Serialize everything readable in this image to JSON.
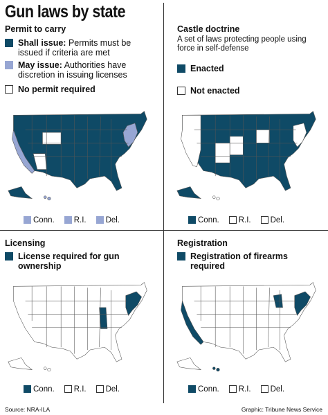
{
  "title": "Gun laws by state",
  "colors": {
    "dark": "#0f4a66",
    "light": "#97a6d3",
    "none": "#ffffff",
    "outline": "#555555"
  },
  "panels": {
    "permit": {
      "title": "Permit to carry",
      "legend": [
        {
          "term": "Shall issue:",
          "text": " Permits must be issued if criteria are met",
          "swatch": "dark"
        },
        {
          "term": "May issue:",
          "text": " Authorities have discretion in issuing licenses",
          "swatch": "light"
        },
        {
          "term": "",
          "text": "No permit required",
          "swatch": "empty"
        }
      ],
      "small_states": [
        {
          "label": "Conn.",
          "swatch": "light"
        },
        {
          "label": "R.I.",
          "swatch": "light"
        },
        {
          "label": "Del.",
          "swatch": "light"
        }
      ]
    },
    "castle": {
      "title": "Castle doctrine",
      "desc": "A set of laws protecting people using force in self-defense",
      "legend": [
        {
          "term": "Enacted",
          "text": "",
          "swatch": "dark"
        },
        {
          "term": "Not enacted",
          "text": "",
          "swatch": "empty"
        }
      ],
      "small_states": [
        {
          "label": "Conn.",
          "swatch": "dark"
        },
        {
          "label": "R.I.",
          "swatch": "empty"
        },
        {
          "label": "Del.",
          "swatch": "empty"
        }
      ]
    },
    "licensing": {
      "title": "Licensing",
      "legend": [
        {
          "term": "License required for gun ownership",
          "text": "",
          "swatch": "dark"
        }
      ],
      "small_states": [
        {
          "label": "Conn.",
          "swatch": "dark"
        },
        {
          "label": "R.I.",
          "swatch": "empty"
        },
        {
          "label": "Del.",
          "swatch": "empty"
        }
      ]
    },
    "registration": {
      "title": "Registration",
      "legend": [
        {
          "term": "Registration of firearms required",
          "text": "",
          "swatch": "dark"
        }
      ],
      "small_states": [
        {
          "label": "Conn.",
          "swatch": "dark"
        },
        {
          "label": "R.I.",
          "swatch": "empty"
        },
        {
          "label": "Del.",
          "swatch": "empty"
        }
      ]
    }
  },
  "footer": {
    "source": "Source: NRA-ILA",
    "credit": "Graphic: Tribune News Service"
  }
}
